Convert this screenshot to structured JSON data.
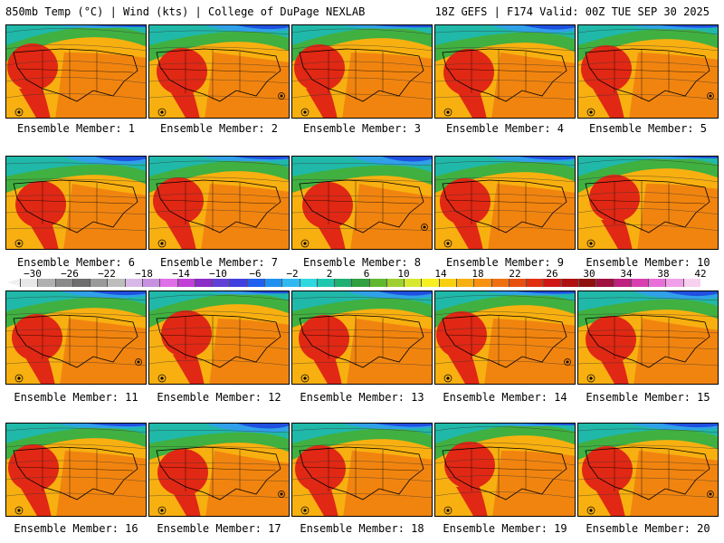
{
  "header": {
    "left": "850mb Temp (°C) | Wind (kts) | College of DuPage NEXLAB",
    "right": "18Z GEFS | F174 Valid: 00Z TUE SEP 30 2025"
  },
  "caption_prefix": "Ensemble Member: ",
  "members": [
    {
      "label": "Ensemble Member: 1"
    },
    {
      "label": "Ensemble Member: 2"
    },
    {
      "label": "Ensemble Member: 3"
    },
    {
      "label": "Ensemble Member: 4"
    },
    {
      "label": "Ensemble Member: 5"
    },
    {
      "label": "Ensemble Member: 6"
    },
    {
      "label": "Ensemble Member: 7"
    },
    {
      "label": "Ensemble Member: 8"
    },
    {
      "label": "Ensemble Member: 9"
    },
    {
      "label": "Ensemble Member: 10"
    },
    {
      "label": "Ensemble Member: 11"
    },
    {
      "label": "Ensemble Member: 12"
    },
    {
      "label": "Ensemble Member: 13"
    },
    {
      "label": "Ensemble Member: 14"
    },
    {
      "label": "Ensemble Member: 15"
    },
    {
      "label": "Ensemble Member: 16"
    },
    {
      "label": "Ensemble Member: 17"
    },
    {
      "label": "Ensemble Member: 18"
    },
    {
      "label": "Ensemble Member: 19"
    },
    {
      "label": "Ensemble Member: 20"
    }
  ],
  "colorbar": {
    "labels": [
      "−30",
      "−26",
      "−22",
      "−18",
      "−14",
      "−10",
      "−6",
      "−2",
      "2",
      "6",
      "10",
      "14",
      "18",
      "22",
      "26",
      "30",
      "34",
      "38",
      "42"
    ],
    "colors": [
      "#e8e8e8",
      "#b0b0b0",
      "#8a8a8a",
      "#6e6e6e",
      "#9a9a9a",
      "#bdbdbd",
      "#d8b8e8",
      "#c890e0",
      "#e070e8",
      "#c040d8",
      "#8a2cc8",
      "#6040d8",
      "#4040e0",
      "#2060f0",
      "#2090f0",
      "#30b8f0",
      "#30d8e0",
      "#20c8b0",
      "#20b070",
      "#30a040",
      "#60b830",
      "#a0d030",
      "#d8e830",
      "#f8f020",
      "#f8d010",
      "#f8b010",
      "#f89010",
      "#f07010",
      "#e85010",
      "#e03010",
      "#d01818",
      "#b01010",
      "#901010",
      "#a01040",
      "#c02080",
      "#d840b0",
      "#e870d8",
      "#f0a0e8",
      "#f8d0f0"
    ]
  },
  "map_colors": {
    "land_hot": "#e02814",
    "land_warm": "#f08010",
    "land_mid": "#f8b010",
    "land_cool": "#d8e830",
    "green": "#40b040",
    "teal": "#20b8a8",
    "blue": "#30a0e8",
    "deep_blue": "#2050e0"
  }
}
